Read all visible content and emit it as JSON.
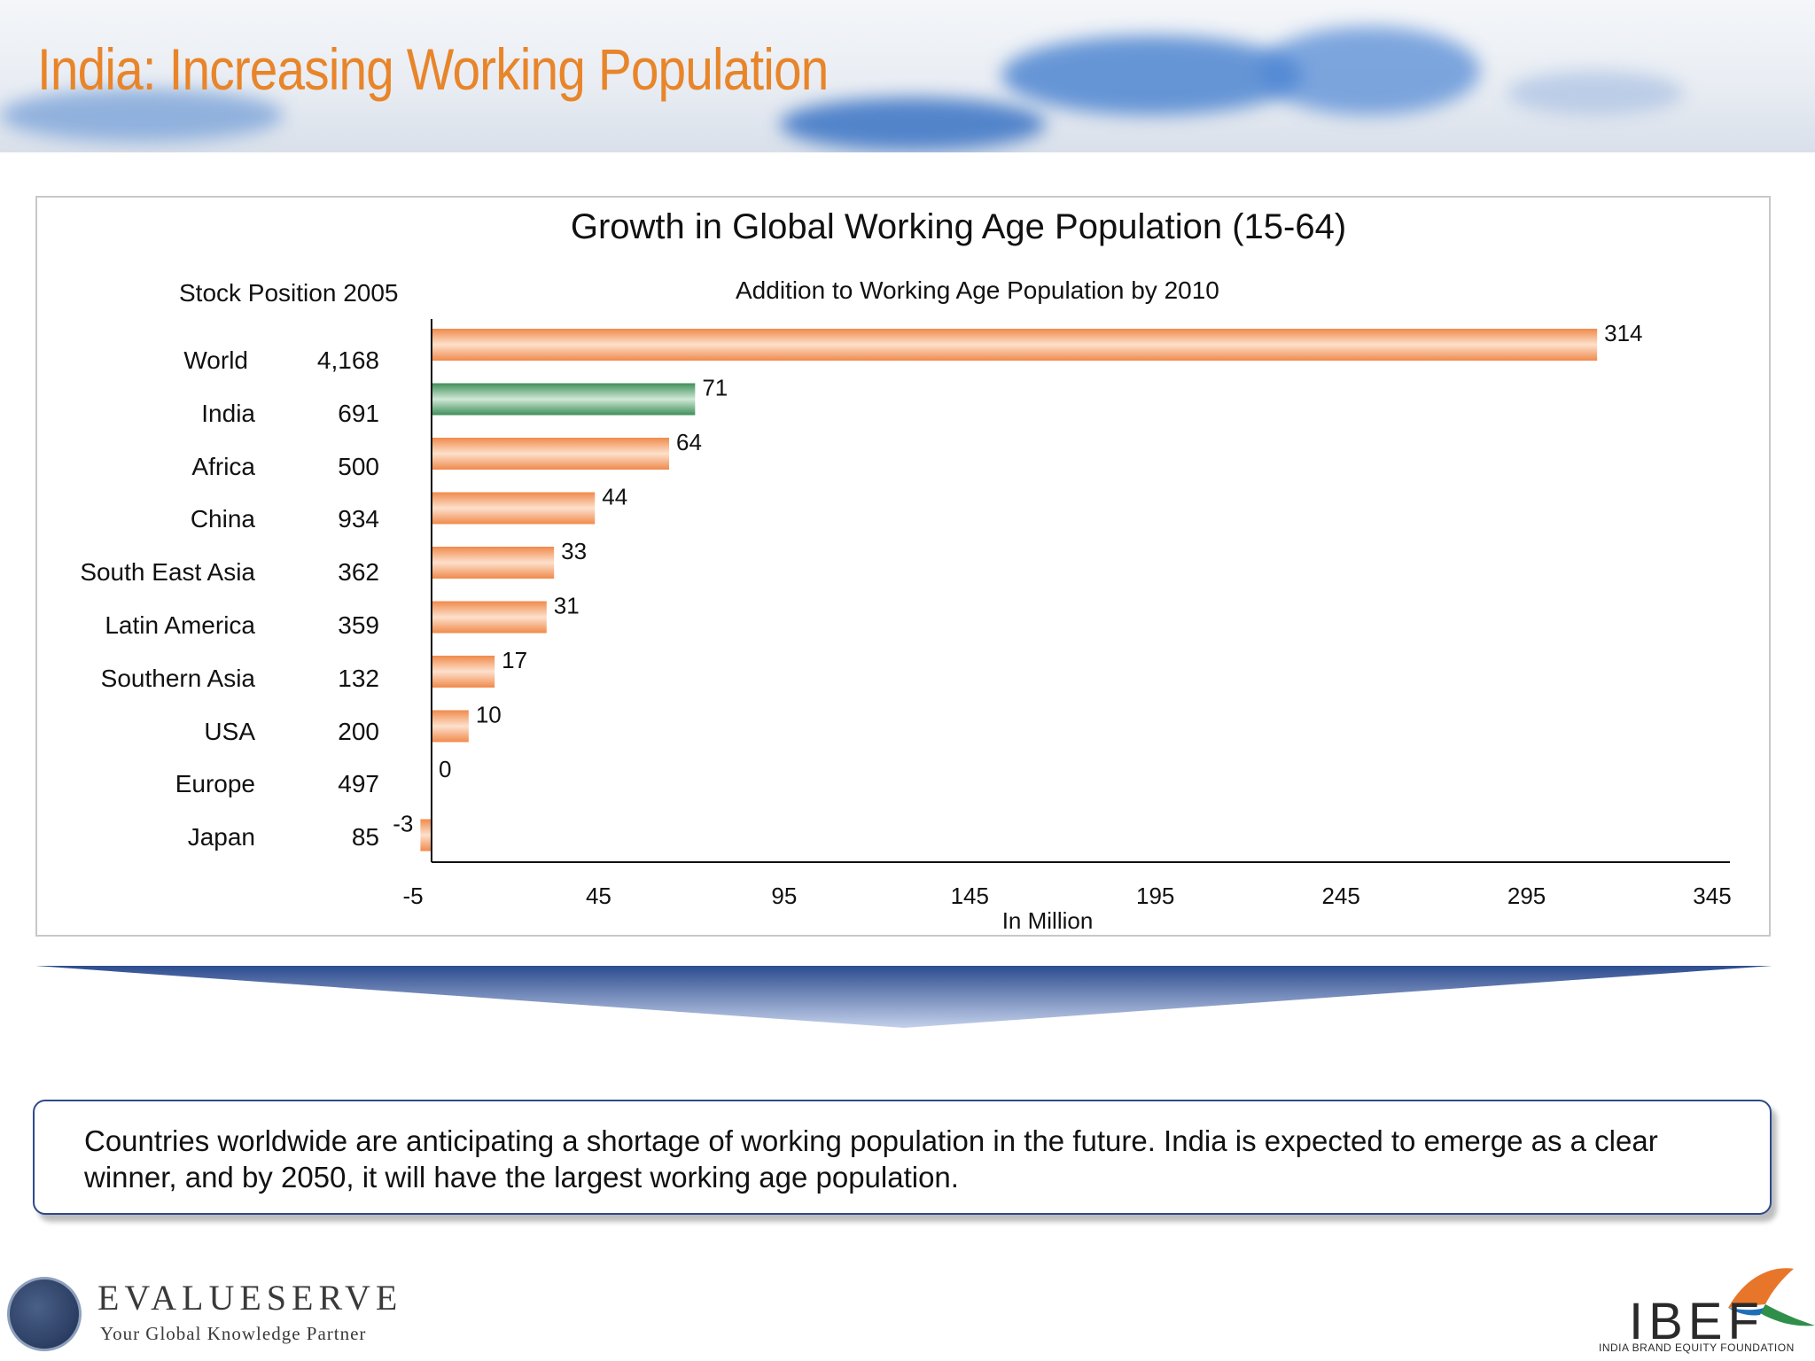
{
  "slide": {
    "title": "India: Increasing Working Population",
    "note": "Countries worldwide are anticipating a shortage of working population in the future. India is expected to emerge as a clear winner, and by 2050, it will have the largest working age population.",
    "footer_left": {
      "name": "EVALUESERVE",
      "tagline": "Your Global Knowledge Partner"
    },
    "footer_right": {
      "name": "IBEF",
      "tagline": "INDIA BRAND EQUITY FOUNDATION"
    }
  },
  "colors": {
    "title": "#e8852a",
    "bar_default": "#f08a4b",
    "bar_highlight": "#3f8f59",
    "arrow": "#2d4c8f"
  },
  "chart_data": {
    "type": "bar",
    "orientation": "horizontal",
    "title": "Growth in Global Working Age Population (15-64)",
    "left_column_header": "Stock Position 2005",
    "bars_header": "Addition to Working Age Population by 2010",
    "xlabel": "In Million",
    "xlim": [
      -5,
      345
    ],
    "xticks": [
      "-5",
      "45",
      "95",
      "145",
      "195",
      "245",
      "295",
      "345"
    ],
    "categories": [
      "World",
      "India",
      "Africa",
      "China",
      "South East Asia",
      "Latin America",
      "Southern Asia",
      "USA",
      "Europe",
      "Japan"
    ],
    "stock_2005": [
      "4,168",
      "691",
      "500",
      "934",
      "362",
      "359",
      "132",
      "200",
      "497",
      "85"
    ],
    "values": [
      314,
      71,
      64,
      44,
      33,
      31,
      17,
      10,
      0,
      -3
    ],
    "value_labels": [
      "314",
      "71",
      "64",
      "44",
      "33",
      "31",
      "17",
      "10",
      "0",
      "-3"
    ],
    "highlight": "India",
    "grid": false,
    "legend": "none"
  }
}
